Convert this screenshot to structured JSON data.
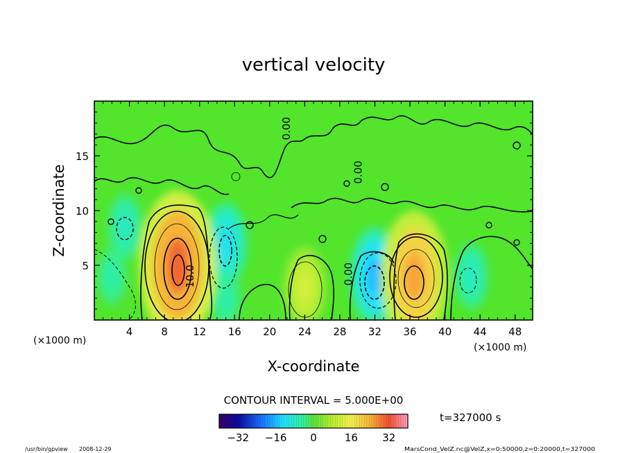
{
  "chart_data": {
    "type": "heatmap",
    "title": "vertical velocity",
    "xlabel": "X-coordinate",
    "ylabel": "Z-coordinate",
    "x_unit_left": "(×1000 m)",
    "x_unit_right": "(×1000 m)",
    "xlim": [
      0,
      50
    ],
    "ylim": [
      0,
      20
    ],
    "x_ticks": [
      "4",
      "8",
      "12",
      "16",
      "20",
      "24",
      "28",
      "32",
      "36",
      "40",
      "44",
      "48"
    ],
    "y_ticks": [
      "5",
      "10",
      "15"
    ],
    "contour_interval_text": "CONTOUR INTERVAL = 5.000E+00",
    "contour_labels": [
      "10.0",
      "0.00",
      "0.00",
      "0.00"
    ],
    "time_label": "t=327000 s",
    "colorbar": {
      "range": [
        -40,
        40
      ],
      "ticks": [
        "−32",
        "−16",
        "0",
        "16",
        "32"
      ]
    },
    "cells": [
      {
        "x": 9.5,
        "z": 5.0,
        "value": 30
      },
      {
        "x": 9.5,
        "z": 3.0,
        "value": 22
      },
      {
        "x": 36.5,
        "z": 4.0,
        "value": 25
      },
      {
        "x": 24.0,
        "z": 3.0,
        "value": 12
      },
      {
        "x": 15.0,
        "z": 7.0,
        "value": -12
      },
      {
        "x": 32.0,
        "z": 4.0,
        "value": -16
      },
      {
        "x": 3.5,
        "z": 8.5,
        "value": -8
      },
      {
        "x": 43.0,
        "z": 4.0,
        "value": -8
      },
      {
        "x": 2.0,
        "z": 4.0,
        "value": -6
      },
      {
        "x": 15.0,
        "z": 2.0,
        "value": -6
      }
    ]
  },
  "footer": {
    "program": "/usr/bin/gpview",
    "date": "2008-12-29",
    "source": "MarsCond_VelZ.nc@VelZ,x=0:50000,z=0:20000,t=327000"
  }
}
